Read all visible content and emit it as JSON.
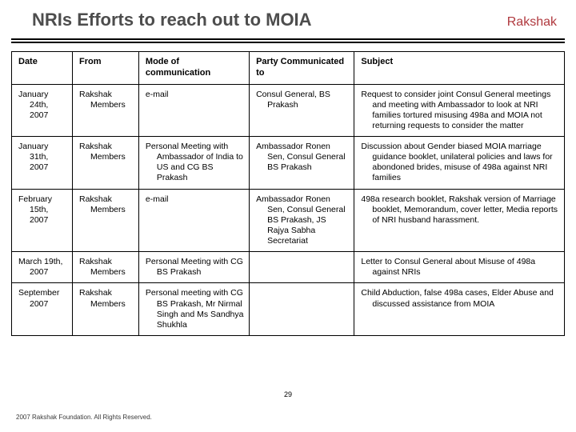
{
  "header": {
    "title": "NRIs Efforts to reach out to MOIA",
    "brand": "Rakshak"
  },
  "table": {
    "columns": [
      "Date",
      "From",
      "Mode of communication",
      "Party Communicated to",
      "Subject"
    ],
    "rows": [
      {
        "date": "January 24th, 2007",
        "from": "Rakshak Members",
        "mode": "e-mail",
        "party": "Consul General, BS Prakash",
        "subject": "Request to consider joint Consul General meetings and meeting with Ambassador to look at NRI families tortured misusing 498a and MOIA not returning requests to consider the matter"
      },
      {
        "date": "January 31th, 2007",
        "from": "Rakshak Members",
        "mode": "Personal Meeting with Ambassador of India to US and CG BS Prakash",
        "party": "Ambassador Ronen Sen, Consul General BS Prakash",
        "subject": "Discussion about Gender biased MOIA marriage guidance booklet, unilateral policies and laws for abondoned brides, misuse of 498a against NRI families"
      },
      {
        "date": "February 15th, 2007",
        "from": "Rakshak Members",
        "mode": "e-mail",
        "party": "Ambassador Ronen Sen, Consul General BS Prakash, JS Rajya Sabha Secretariat",
        "subject": "498a research booklet, Rakshak version of Marriage booklet, Memorandum, cover letter, Media reports of NRI husband harassment."
      },
      {
        "date": "March 19th, 2007",
        "from": "Rakshak Members",
        "mode": "Personal Meeting with CG BS Prakash",
        "party": "",
        "subject": "Letter to Consul General about Misuse of 498a against NRIs"
      },
      {
        "date": "September 2007",
        "from": "Rakshak Members",
        "mode": "Personal meeting with CG BS Prakash, Mr Nirmal Singh and Ms Sandhya Shukhla",
        "party": "",
        "subject": "Child Abduction, false 498a cases, Elder Abuse and discussed assistance from MOIA"
      }
    ]
  },
  "footer": {
    "copyright": "2007 Rakshak Foundation. All Rights Reserved.",
    "page_number": "29"
  }
}
